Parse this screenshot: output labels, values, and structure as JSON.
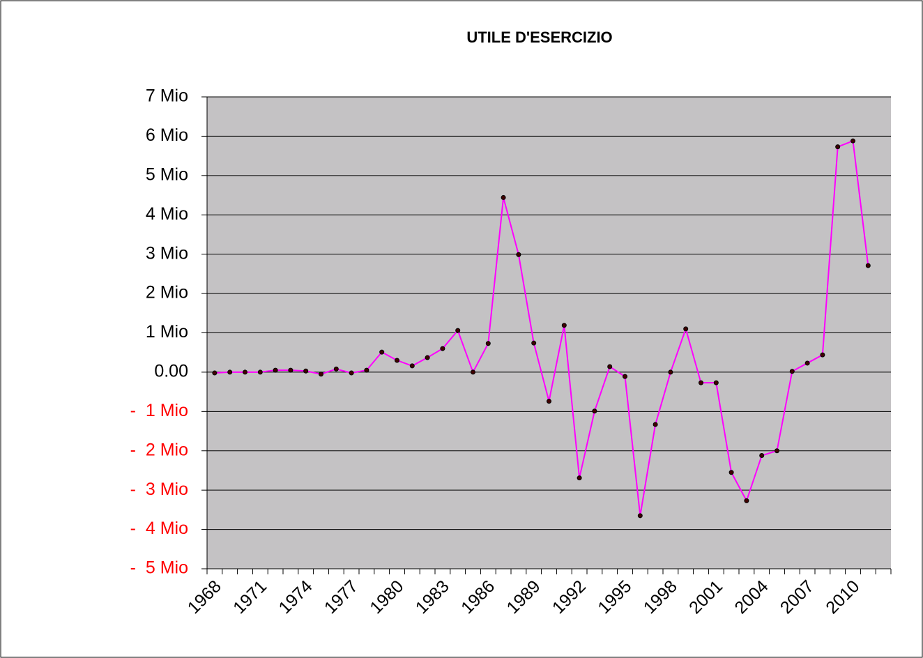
{
  "chart_data": {
    "type": "line",
    "title": "UTILE D'ESERCIZIO",
    "categories": [
      "1968",
      null,
      null,
      "1971",
      null,
      null,
      "1974",
      null,
      null,
      "1977",
      null,
      null,
      "1980",
      null,
      null,
      "1983",
      null,
      null,
      "1986",
      null,
      null,
      "1989",
      null,
      null,
      "1992",
      null,
      null,
      "1995",
      null,
      null,
      "1998",
      null,
      null,
      "2001",
      null,
      null,
      "2004",
      null,
      null,
      "2007",
      null,
      null,
      "2010",
      null,
      null
    ],
    "series": [
      {
        "color": "#ff00ff",
        "marker_color": "#000000",
        "values": [
          -0.02,
          0,
          0,
          0,
          0.05,
          0.05,
          0.03,
          -0.05,
          0.08,
          -0.02,
          0.05,
          0.51,
          0.3,
          0.16,
          0.37,
          0.6,
          1.06,
          0,
          0.73,
          4.44,
          2.99,
          0.74,
          -0.74,
          1.19,
          -2.69,
          -0.99,
          0.14,
          -0.11,
          -3.65,
          -1.33,
          0,
          1.1,
          -0.27,
          -0.27,
          -2.55,
          -3.27,
          -2.12,
          -2.0,
          0.02,
          0.23,
          0.44,
          5.73,
          5.88,
          2.71,
          null
        ]
      }
    ],
    "ylim": [
      -5,
      7
    ],
    "yticks": [
      {
        "value": -5,
        "label": "-  5 Mio"
      },
      {
        "value": -4,
        "label": "-  4 Mio"
      },
      {
        "value": -3,
        "label": "-  3 Mio"
      },
      {
        "value": -2,
        "label": "-  2 Mio"
      },
      {
        "value": -1,
        "label": "-  1 Mio"
      },
      {
        "value": 0,
        "label": "0.00"
      },
      {
        "value": 1,
        "label": "1 Mio"
      },
      {
        "value": 2,
        "label": "2 Mio"
      },
      {
        "value": 3,
        "label": "3 Mio"
      },
      {
        "value": 4,
        "label": "4 Mio"
      },
      {
        "value": 5,
        "label": "5 Mio"
      },
      {
        "value": 6,
        "label": "6 Mio"
      },
      {
        "value": 7,
        "label": "7 Mio"
      }
    ],
    "grid": true,
    "plot_background": "#c4c2c4",
    "negative_label_color": "#ff0000"
  }
}
